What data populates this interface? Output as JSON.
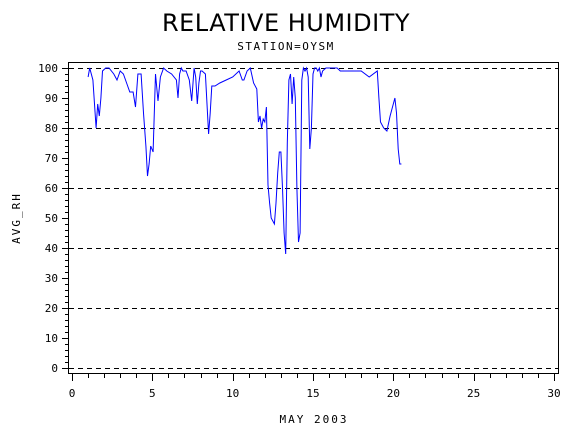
{
  "chart_data": {
    "type": "line",
    "title": "RELATIVE HUMIDITY",
    "subtitle": "STATION=OYSM",
    "xlabel": "MAY 2003",
    "ylabel": "AVG_RH",
    "xlim": [
      0,
      30
    ],
    "ylim": [
      0,
      100
    ],
    "x_ticks": [
      0,
      5,
      10,
      15,
      20,
      25,
      30
    ],
    "y_ticks": [
      0,
      10,
      20,
      30,
      40,
      50,
      60,
      70,
      80,
      90,
      100
    ],
    "grid_y": [
      0,
      20,
      40,
      60,
      80,
      100
    ],
    "grid": "dashed horizontal",
    "line_color": "#0000ff",
    "series": [
      {
        "x": [
          1.0,
          1.1,
          1.3,
          1.5,
          1.6,
          1.7,
          1.8,
          1.9,
          2.1,
          2.3,
          2.6,
          2.8,
          3.0,
          3.2,
          3.4,
          3.6,
          3.8,
          3.95,
          4.1,
          4.3,
          4.45,
          4.6,
          4.7,
          4.8,
          4.9,
          5.05,
          5.2,
          5.35,
          5.5,
          5.7,
          5.9,
          6.2,
          6.5,
          6.6,
          6.7,
          6.8,
          6.9,
          7.1,
          7.3,
          7.45,
          7.6,
          7.7,
          7.8,
          7.9,
          8.0,
          8.1,
          8.3,
          8.5,
          8.6,
          8.7,
          8.9,
          9.2,
          9.6,
          10.0,
          10.4,
          10.6,
          10.7,
          10.9,
          11.1,
          11.3,
          11.5,
          11.6,
          11.7,
          11.8,
          11.9,
          12.0,
          12.1,
          12.2,
          12.3,
          12.4,
          12.6,
          12.7,
          12.8,
          12.9,
          13.0,
          13.1,
          13.2,
          13.3,
          13.4,
          13.5,
          13.6,
          13.7,
          13.8,
          13.9,
          14.0,
          14.1,
          14.2,
          14.3,
          14.4,
          14.5,
          14.6,
          14.7,
          14.8,
          14.9,
          15.0,
          15.1,
          15.2,
          15.3,
          15.4,
          15.5,
          15.6,
          15.8,
          16.0,
          16.2,
          16.5,
          16.7,
          17.0,
          17.5,
          18.0,
          18.5,
          19.0,
          19.1,
          19.2,
          19.4,
          19.6,
          19.8,
          20.0,
          20.1,
          20.2,
          20.3,
          20.4,
          20.5
        ],
        "y": [
          97,
          100,
          96,
          80,
          88,
          84,
          90,
          99,
          100,
          100,
          98,
          96,
          99,
          98,
          95,
          92,
          92,
          87,
          98,
          98,
          85,
          74,
          64,
          68,
          74,
          72,
          98,
          89,
          97,
          100,
          99,
          98,
          96,
          90,
          98,
          100,
          99,
          99,
          96,
          89,
          100,
          97,
          88,
          95,
          99,
          99,
          98,
          78,
          85,
          94,
          94,
          95,
          96,
          97,
          99,
          96,
          96,
          99,
          100,
          95,
          93,
          82,
          84,
          80,
          83,
          82,
          87,
          61,
          55,
          50,
          48,
          55,
          65,
          72,
          72,
          60,
          45,
          38,
          75,
          96,
          98,
          88,
          97,
          90,
          60,
          42,
          45,
          96,
          100,
          99,
          100,
          97,
          73,
          80,
          98,
          100,
          100,
          99,
          100,
          97,
          99,
          100,
          100,
          100,
          100,
          99,
          99,
          99,
          99,
          97,
          99,
          90,
          82,
          80,
          79,
          84,
          88,
          90,
          85,
          73,
          68,
          68
        ]
      }
    ]
  }
}
